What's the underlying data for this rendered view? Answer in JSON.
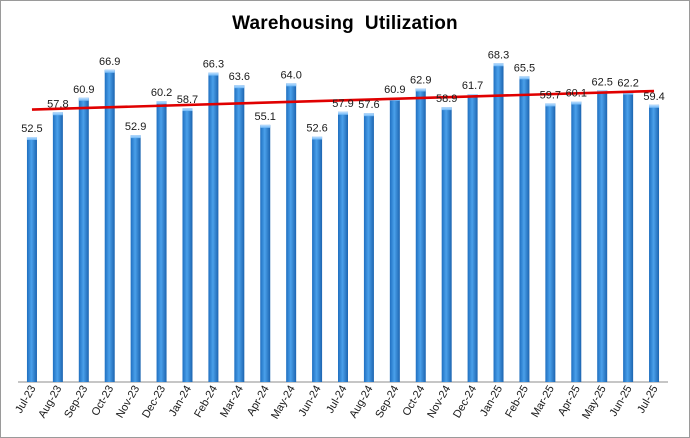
{
  "chart_data": {
    "type": "bar",
    "title": "Warehousing  Utilization",
    "categories": [
      "Jul-23",
      "Aug-23",
      "Sep-23",
      "Oct-23",
      "Nov-23",
      "Dec-23",
      "Jan-24",
      "Feb-24",
      "Mar-24",
      "Apr-24",
      "May-24",
      "Jun-24",
      "Jul-24",
      "Aug-24",
      "Sep-24",
      "Oct-24",
      "Nov-24",
      "Dec-24",
      "Jan-25",
      "Feb-25",
      "Mar-25",
      "Apr-25",
      "May-25",
      "Jun-25",
      "Jul-25"
    ],
    "values": [
      52.5,
      57.8,
      60.9,
      66.9,
      52.9,
      60.2,
      58.7,
      66.3,
      63.6,
      55.1,
      64.0,
      52.6,
      57.9,
      57.6,
      60.9,
      62.9,
      58.9,
      61.7,
      68.3,
      65.5,
      59.7,
      60.1,
      62.5,
      62.2,
      59.4
    ],
    "trendline": {
      "type": "linear",
      "color": "#e00000"
    },
    "bar_color": "#2e86d6",
    "ylim": [
      0,
      75
    ],
    "grid": false,
    "legend": "none",
    "xlabel": "",
    "ylabel": ""
  }
}
